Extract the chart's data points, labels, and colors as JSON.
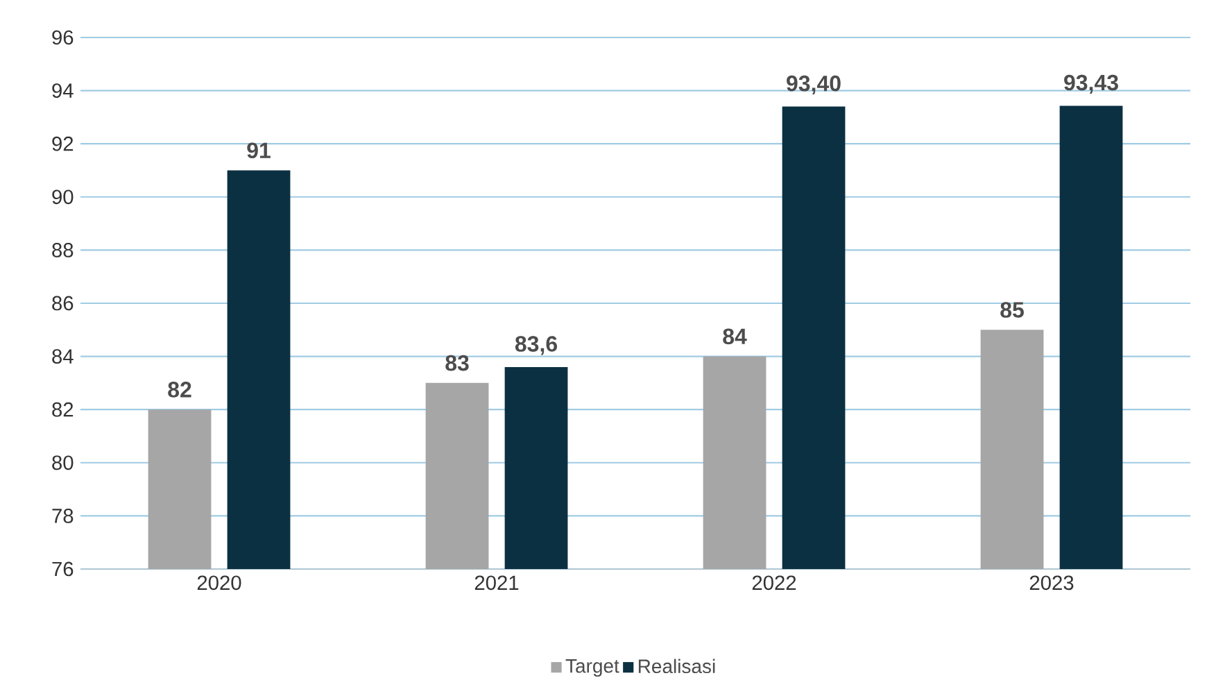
{
  "chart_data": {
    "type": "bar",
    "categories": [
      "2020",
      "2021",
      "2022",
      "2023"
    ],
    "series": [
      {
        "name": "Target",
        "color": "#a6a6a6",
        "values": [
          82,
          83,
          84,
          85
        ],
        "value_labels": [
          "82",
          "83",
          "84",
          "85"
        ]
      },
      {
        "name": "Realisasi",
        "color": "#0b3042",
        "values": [
          91,
          83.6,
          93.4,
          93.43
        ],
        "value_labels": [
          "91",
          "83,6",
          "93,40",
          "93,43"
        ]
      }
    ],
    "ylim": [
      76,
      96
    ],
    "yticks": [
      76,
      78,
      80,
      82,
      84,
      86,
      88,
      90,
      92,
      94,
      96
    ],
    "grid": "y",
    "legend": "bottom"
  }
}
